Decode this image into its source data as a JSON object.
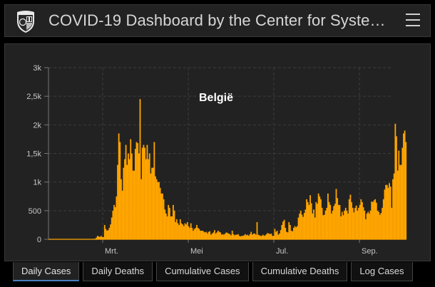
{
  "header": {
    "title": "COVID-19 Dashboard by the Center for Syste…",
    "logo_icon": "university-shield-icon",
    "menu_icon": "hamburger-menu-icon"
  },
  "tabs": [
    {
      "label": "Daily Cases",
      "active": true
    },
    {
      "label": "Daily Deaths",
      "active": false
    },
    {
      "label": "Cumulative Cases",
      "active": false
    },
    {
      "label": "Cumulative Deaths",
      "active": false
    },
    {
      "label": "Log Cases",
      "active": false
    }
  ],
  "colors": {
    "bar": "#FFA500",
    "background": "#222222",
    "page_background": "#000000",
    "active_tab_underline": "#4A7FC1"
  },
  "chart_data": {
    "type": "bar",
    "title": "België",
    "xlabel": "",
    "ylabel": "",
    "ylim": [
      0,
      3000
    ],
    "y_ticks": [
      "0",
      "500",
      "1k",
      "1,5k",
      "2k",
      "2,5k",
      "3k"
    ],
    "y_tick_values": [
      0,
      500,
      1000,
      1500,
      2000,
      2500,
      3000
    ],
    "x_ticks": [
      "Mrt.",
      "Mei",
      "Jul.",
      "Sep."
    ],
    "grid": true,
    "legend": null,
    "series": [
      {
        "name": "Daily Cases",
        "values": [
          0,
          0,
          0,
          0,
          0,
          0,
          0,
          0,
          0,
          0,
          0,
          0,
          0,
          0,
          0,
          0,
          0,
          0,
          0,
          0,
          0,
          0,
          0,
          0,
          0,
          0,
          0,
          0,
          0,
          0,
          0,
          0,
          0,
          0,
          0,
          0,
          0,
          2,
          8,
          10,
          30,
          60,
          50,
          40,
          60,
          40,
          40,
          250,
          180,
          150,
          160,
          200,
          260,
          380,
          500,
          600,
          560,
          750,
          1300,
          1850,
          1700,
          1050,
          850,
          1250,
          1400,
          1650,
          1300,
          1500,
          1400,
          1750,
          1500,
          1200,
          1200,
          1580,
          1700,
          1680,
          1500,
          2450,
          1050,
          1600,
          1650,
          1600,
          1400,
          1650,
          1400,
          1500,
          1150,
          1250,
          1250,
          1700,
          1100,
          1050,
          1000,
          1000,
          900,
          800,
          800,
          700,
          520,
          450,
          400,
          600,
          550,
          400,
          400,
          600,
          500,
          300,
          350,
          280,
          250,
          350,
          280,
          260,
          230,
          280,
          260,
          300,
          230,
          200,
          280,
          200,
          150,
          180,
          200,
          250,
          200,
          180,
          150,
          150,
          150,
          130,
          120,
          130,
          100,
          130,
          140,
          80,
          100,
          120,
          160,
          100,
          120,
          150,
          130,
          120,
          80,
          90,
          80,
          100,
          120,
          110,
          100,
          90,
          70,
          150,
          90,
          70,
          80,
          80,
          90,
          60,
          50,
          60,
          60,
          70,
          90,
          70,
          80,
          60,
          90,
          130,
          80,
          100,
          100,
          80,
          300,
          80,
          70,
          60,
          60,
          80,
          60,
          70,
          90,
          110,
          100,
          90,
          100,
          60,
          60,
          180,
          130,
          150,
          80,
          100,
          160,
          250,
          310,
          340,
          200,
          130,
          120,
          300,
          250,
          150,
          140,
          200,
          230,
          210,
          230,
          380,
          450,
          500,
          430,
          390,
          460,
          520,
          700,
          650,
          600,
          770,
          630,
          450,
          520,
          380,
          650,
          620,
          800,
          750,
          700,
          550,
          420,
          430,
          500,
          550,
          800,
          650,
          600,
          450,
          500,
          580,
          620,
          880,
          720,
          600,
          600,
          400,
          480,
          420,
          500,
          550,
          500,
          450,
          700,
          780,
          650,
          550,
          470,
          550,
          590,
          500,
          550,
          600,
          700,
          650,
          560,
          500,
          350,
          450,
          480,
          450,
          500,
          660,
          650,
          680,
          700,
          640,
          500,
          480,
          430,
          460,
          550,
          700,
          870,
          950,
          950,
          900,
          980,
          920,
          550,
          1050,
          1150,
          2020,
          1800,
          1200,
          1550,
          1300,
          1300,
          1600,
          1850,
          1900,
          1700
        ]
      }
    ],
    "x_range": [
      "~22 Jan",
      "~24 Sep"
    ]
  }
}
